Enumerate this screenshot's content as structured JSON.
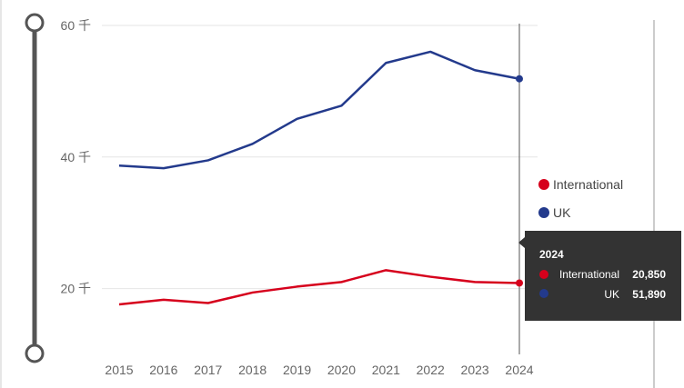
{
  "chart_data": {
    "type": "line",
    "title": "",
    "xlabel": "",
    "ylabel": "",
    "x": [
      "2015",
      "2016",
      "2017",
      "2018",
      "2019",
      "2020",
      "2021",
      "2022",
      "2023",
      "2024"
    ],
    "ylim": [
      10000,
      60000
    ],
    "yticks": [
      {
        "value": 20000,
        "label": "20 千"
      },
      {
        "value": 40000,
        "label": "40 千"
      },
      {
        "value": 60000,
        "label": "60 千"
      }
    ],
    "grid": true,
    "legend_position": "right",
    "series": [
      {
        "name": "International",
        "color": "#d6001c",
        "values": [
          17600,
          18300,
          17800,
          19400,
          20300,
          21000,
          22800,
          21800,
          21000,
          20850
        ]
      },
      {
        "name": "UK",
        "color": "#233a8c",
        "values": [
          38700,
          38300,
          39500,
          42000,
          45800,
          47800,
          54300,
          56000,
          53200,
          51890
        ]
      }
    ],
    "tooltip": {
      "title": "2024",
      "rows": [
        {
          "name": "International",
          "value": "20,850",
          "color": "#d6001c"
        },
        {
          "name": "UK",
          "value": "51,890",
          "color": "#233a8c"
        }
      ]
    }
  },
  "colors": {
    "slider": "#555555",
    "tooltip_bg": "#333333",
    "grid": "#e6e6e6"
  }
}
